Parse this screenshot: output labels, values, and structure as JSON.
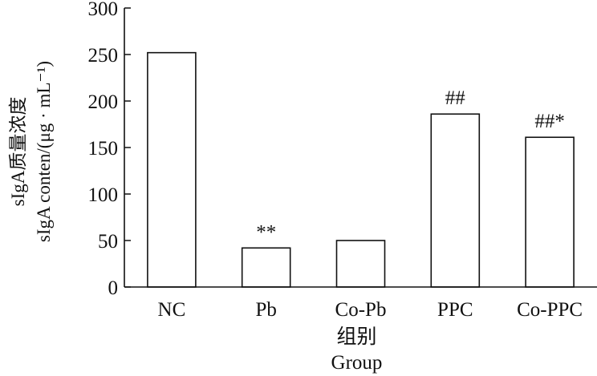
{
  "chart_data": {
    "type": "bar",
    "categories": [
      "NC",
      "Pb",
      "Co-Pb",
      "PPC",
      "Co-PPC"
    ],
    "values": [
      252,
      42,
      50,
      186,
      161
    ],
    "data_labels": [
      "",
      "**",
      "",
      "##",
      "##*"
    ],
    "title": "",
    "xlabel": [
      "组别",
      "Group"
    ],
    "ylabel": [
      "sIgA质量浓度",
      "sIgA conten/(μg · mL⁻¹)"
    ],
    "ylim": [
      0,
      300
    ],
    "yticks": [
      "0",
      "50",
      "100",
      "150",
      "200",
      "250",
      "300"
    ],
    "grid": false,
    "legend": "none",
    "colors": {
      "bar_fill": "#ffffff",
      "bar_stroke": "#111111",
      "axis": "#111111"
    }
  }
}
